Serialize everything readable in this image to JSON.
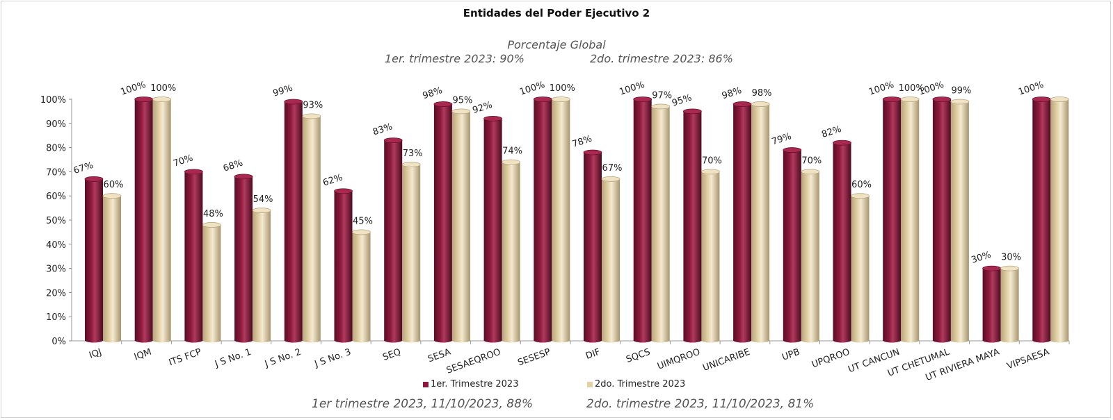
{
  "chart_data": {
    "type": "bar",
    "title": "Entidades del Poder Ejecutivo 2",
    "annotations": {
      "global_label": "Porcentaje Global",
      "q1_global": "1er. trimestre 2023: 90%",
      "q2_global": "2do. trimestre 2023: 86%",
      "footer_q1": "1er trimestre  2023,  11/10/2023, 88%",
      "footer_q2": "2do. trimestre 2023, 11/10/2023, 81%"
    },
    "categories": [
      "IQJ",
      "IQM",
      "ITS FCP",
      "J S No. 1",
      "J S No. 2",
      "J S No. 3",
      "SEQ",
      "SESA",
      "SESAEQROO",
      "SESESP",
      "DIF",
      "SQCS",
      "UIMQROO",
      "UNICARIBE",
      "UPB",
      "UPQROO",
      "UT CANCUN",
      "UT CHETUMAL",
      "UT RIVIERA MAYA",
      "VIPSAESA"
    ],
    "series": [
      {
        "name": "1er. Trimestre 2023",
        "color": "#8c1a3e",
        "values": [
          67,
          100,
          70,
          68,
          99,
          62,
          83,
          98,
          92,
          100,
          78,
          100,
          95,
          98,
          79,
          82,
          100,
          100,
          30,
          100
        ],
        "labels": [
          "67%",
          "100%",
          "70%",
          "68%",
          "99%",
          "62%",
          "83%",
          "98%",
          "92%",
          "100%",
          "78%",
          "100%",
          "95%",
          "98%",
          "79%",
          "82%",
          "100%",
          "100%",
          "30%",
          "100%"
        ]
      },
      {
        "name": "2do. Trimestre 2023",
        "color": "#e3d1a6",
        "values": [
          60,
          100,
          48,
          54,
          93,
          45,
          73,
          95,
          74,
          100,
          67,
          97,
          70,
          98,
          70,
          60,
          100,
          99,
          30,
          100
        ],
        "labels": [
          "60%",
          "100%",
          "48%",
          "54%",
          "93%",
          "45%",
          "73%",
          "95%",
          "74%",
          "100%",
          "67%",
          "97%",
          "70%",
          "98%",
          "70%",
          "60%",
          "100%",
          "99%",
          "30%",
          ""
        ]
      }
    ],
    "y_ticks": [
      "0%",
      "10%",
      "20%",
      "30%",
      "40%",
      "50%",
      "60%",
      "70%",
      "80%",
      "90%",
      "100%"
    ],
    "ylim": [
      0,
      100
    ],
    "grid": false,
    "legend_position": "bottom"
  }
}
